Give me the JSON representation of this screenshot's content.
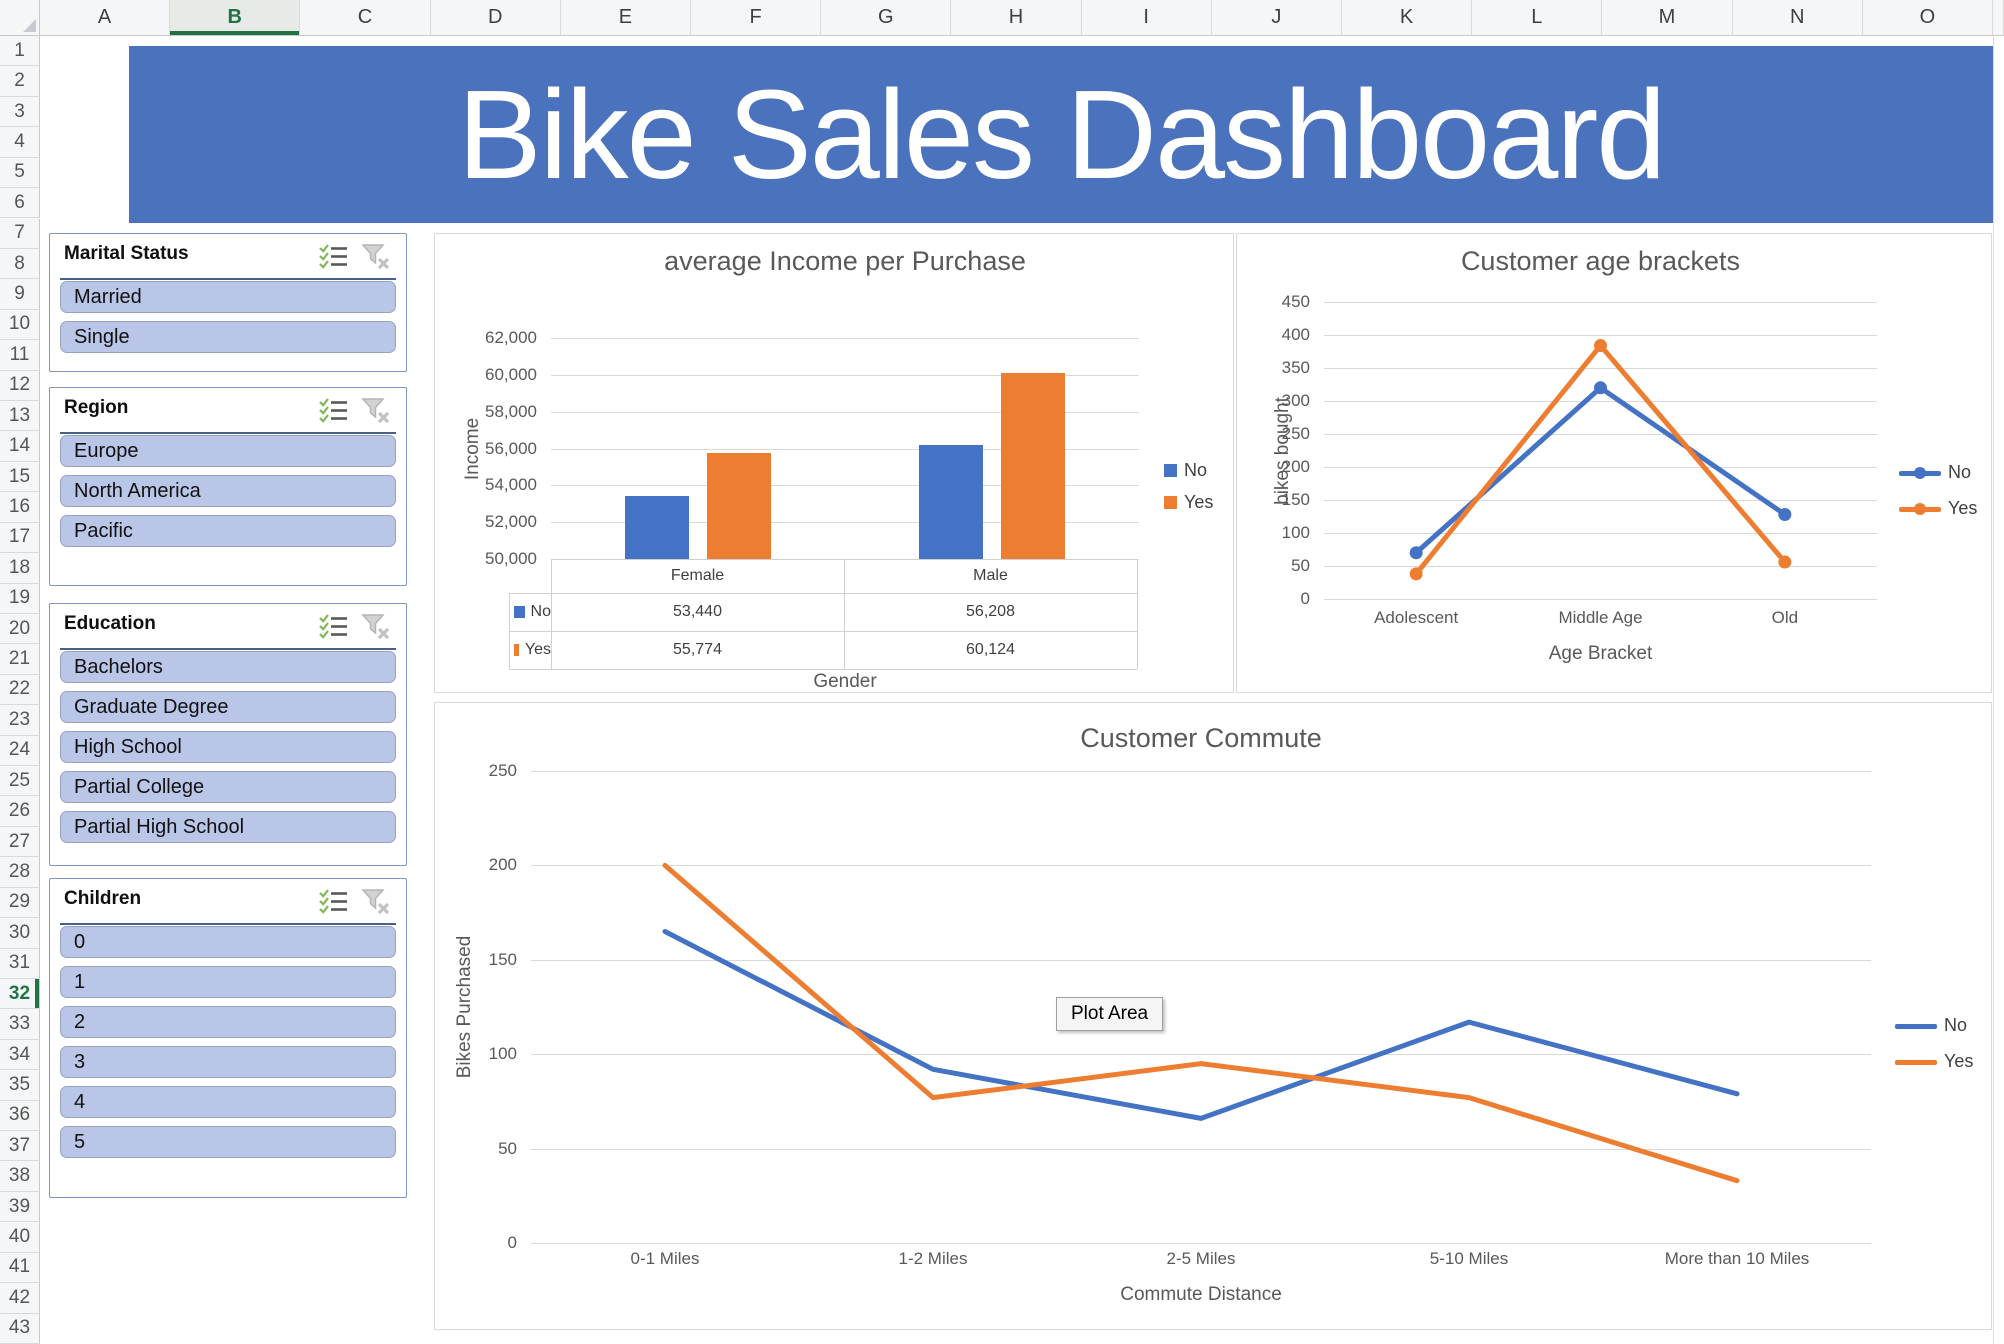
{
  "banner": {
    "title": "Bike Sales Dashboard",
    "bg_color": "#4a72bd"
  },
  "grid": {
    "columns": [
      "A",
      "B",
      "C",
      "D",
      "E",
      "F",
      "G",
      "H",
      "I",
      "J",
      "K",
      "L",
      "M",
      "N",
      "O"
    ],
    "selected_column": "B",
    "row_numbers": [
      1,
      2,
      3,
      4,
      5,
      6,
      7,
      8,
      9,
      10,
      11,
      12,
      13,
      14,
      15,
      16,
      17,
      18,
      19,
      20,
      21,
      22,
      23,
      24,
      25,
      26,
      27,
      28,
      29,
      30,
      31,
      32,
      33,
      34,
      35,
      36,
      37,
      38,
      39,
      40,
      41,
      42,
      43
    ],
    "selected_row": 32
  },
  "slicers": [
    {
      "title": "Marital Status",
      "items": [
        "Married",
        "Single"
      ],
      "icons": [
        "multi-select",
        "clear-filter"
      ]
    },
    {
      "title": "Region",
      "items": [
        "Europe",
        "North America",
        "Pacific"
      ],
      "icons": [
        "multi-select",
        "clear-filter"
      ]
    },
    {
      "title": "Education",
      "items": [
        "Bachelors",
        "Graduate Degree",
        "High School",
        "Partial College",
        "Partial High School"
      ],
      "icons": [
        "multi-select",
        "clear-filter"
      ]
    },
    {
      "title": "Children",
      "items": [
        "0",
        "1",
        "2",
        "3",
        "4",
        "5"
      ],
      "icons": [
        "multi-select",
        "clear-filter"
      ]
    }
  ],
  "charts": {
    "plot_area_tooltip": "Plot Area"
  },
  "chart_data": [
    {
      "type": "bar",
      "title": "average Income per Purchase",
      "categories": [
        "Female",
        "Male"
      ],
      "series": [
        {
          "name": "No",
          "values": [
            53440,
            56208
          ],
          "color": "#4472c4"
        },
        {
          "name": "Yes",
          "values": [
            55774,
            60124
          ],
          "color": "#ed7d31"
        }
      ],
      "xlabel": "Gender",
      "ylabel": "Income",
      "ylim": [
        50000,
        62000
      ],
      "ytick_step": 2000,
      "grid": true,
      "legend_position": "right",
      "data_table": {
        "column_headers": [
          "Female",
          "Male"
        ],
        "rows": [
          {
            "name": "No",
            "cells": [
              "53,440",
              "56,208"
            ]
          },
          {
            "name": "Yes",
            "cells": [
              "55,774",
              "60,124"
            ]
          }
        ]
      }
    },
    {
      "type": "line",
      "title": "Customer age brackets",
      "categories": [
        "Adolescent",
        "Middle Age",
        "Old"
      ],
      "series": [
        {
          "name": "No",
          "values": [
            70,
            320,
            128
          ],
          "color": "#4472c4"
        },
        {
          "name": "Yes",
          "values": [
            38,
            384,
            56
          ],
          "color": "#ed7d31"
        }
      ],
      "xlabel": "Age Bracket",
      "ylabel": "bikes bought",
      "ylim": [
        0,
        450
      ],
      "ytick_step": 50,
      "markers": true,
      "grid": true,
      "legend_position": "right"
    },
    {
      "type": "line",
      "title": "Customer Commute",
      "categories": [
        "0-1 Miles",
        "1-2 Miles",
        "2-5 Miles",
        "5-10 Miles",
        "More than 10 Miles"
      ],
      "series": [
        {
          "name": "No",
          "values": [
            165,
            92,
            66,
            117,
            79
          ],
          "color": "#4472c4"
        },
        {
          "name": "Yes",
          "values": [
            200,
            77,
            95,
            77,
            33
          ],
          "color": "#ed7d31"
        }
      ],
      "xlabel": "Commute Distance",
      "ylabel": "Bikes Purchased",
      "ylim": [
        0,
        250
      ],
      "ytick_step": 50,
      "markers": false,
      "grid": true,
      "legend_position": "right"
    }
  ],
  "colors": {
    "banner_blue": "#4a72bd",
    "series_no_blue": "#4472c4",
    "series_yes_orange": "#ed7d31",
    "selection_green": "#217346",
    "chart_text_gray": "#595959"
  }
}
